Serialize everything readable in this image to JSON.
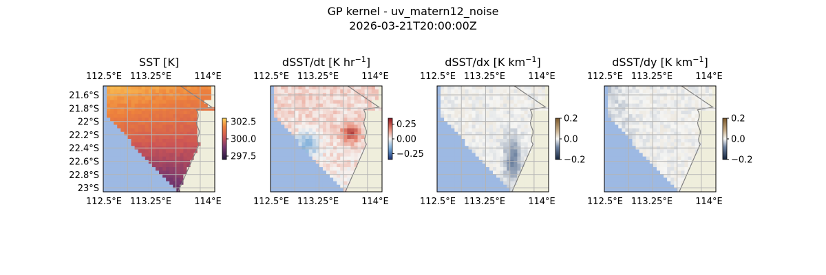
{
  "figure": {
    "title_line1": "GP kernel - uv_matern12_noise",
    "title_line2": "2026-03-21T20:00:00Z"
  },
  "colors": {
    "ocean_missing": "#9db9e3",
    "land": "#efeedc",
    "coast": "#7f7f7f",
    "grid": "#b4b4b4"
  },
  "chart_data": [
    {
      "type": "heatmap",
      "title": "SST [K]",
      "title_base": "SST [K]",
      "title_sup": "",
      "title_tail": "",
      "colormap": "inferno-ish",
      "x_ticks": [
        "112.5°E",
        "113.25°E",
        "114°E"
      ],
      "x_tick_values": [
        112.5,
        113.25,
        114.0
      ],
      "y_ticks": [
        "21.6°S",
        "21.8°S",
        "22°S",
        "22.2°S",
        "22.4°S",
        "22.6°S",
        "22.8°S",
        "23°S"
      ],
      "y_tick_values": [
        -21.6,
        -21.8,
        -22.0,
        -22.2,
        -22.4,
        -22.6,
        -22.8,
        -23.0
      ],
      "xlim": [
        112.5,
        114.1
      ],
      "ylim": [
        -23.03,
        -21.55
      ],
      "colorbar": {
        "range": [
          297.0,
          303.0
        ],
        "ticks": [
          "302.5",
          "300.0",
          "297.5"
        ],
        "tick_values": [
          302.5,
          300.0,
          297.5
        ]
      },
      "values_summary": "warm ~302-303 K in north-east, decreasing to ~298 K in south-west"
    },
    {
      "type": "heatmap",
      "title": "dSST/dt [K hr^-1]",
      "title_base": "dSST/dt [K hr",
      "title_sup": "−1",
      "title_tail": "]",
      "colormap": "diverging (blue-white-red)",
      "x_ticks": [
        "112.5°E",
        "113.25°E",
        "114°E"
      ],
      "x_tick_values": [
        112.5,
        113.25,
        114.0
      ],
      "y_ticks": [],
      "xlim": [
        112.5,
        114.1
      ],
      "ylim": [
        -23.03,
        -21.55
      ],
      "colorbar": {
        "range": [
          -0.35,
          0.35
        ],
        "ticks": [
          "0.25",
          "0.00",
          "−0.25"
        ],
        "tick_values": [
          0.25,
          0.0,
          -0.25
        ]
      },
      "values_summary": "mostly weak positive (light red), strong positive near 113.6°E 22.1°S, negative patch near 112.95°E 22.3°S"
    },
    {
      "type": "heatmap",
      "title": "dSST/dx [K km^-1]",
      "title_base": "dSST/dx [K km",
      "title_sup": "−1",
      "title_tail": "]",
      "colormap": "diverging (dark blue-white-brown)",
      "x_ticks": [
        "112.5°E",
        "113.25°E",
        "114°E"
      ],
      "x_tick_values": [
        112.5,
        113.25,
        114.0
      ],
      "y_ticks": [],
      "xlim": [
        112.5,
        114.1
      ],
      "ylim": [
        -23.03,
        -21.55
      ],
      "colorbar": {
        "range": [
          -0.2,
          0.2
        ],
        "ticks": [
          "0.2",
          "0.0",
          "−0.2"
        ],
        "tick_values": [
          0.2,
          0.0,
          -0.2
        ]
      },
      "values_summary": "near zero everywhere, weak negative streaks near the coast at ~113.4°E"
    },
    {
      "type": "heatmap",
      "title": "dSST/dy [K km^-1]",
      "title_base": "dSST/dy [K km",
      "title_sup": "−1",
      "title_tail": "]",
      "colormap": "diverging (dark blue-white-brown)",
      "x_ticks": [
        "112.5°E",
        "113.25°E",
        "114°E"
      ],
      "x_tick_values": [
        112.5,
        113.25,
        114.0
      ],
      "y_ticks": [],
      "xlim": [
        112.5,
        114.1
      ],
      "ylim": [
        -23.03,
        -21.55
      ],
      "colorbar": {
        "range": [
          -0.2,
          0.2
        ],
        "ticks": [
          "0.2",
          "0.0",
          "−0.2"
        ],
        "tick_values": [
          0.2,
          0.0,
          -0.2
        ]
      },
      "values_summary": "near zero, slightly negative band along the south-west edge"
    }
  ]
}
